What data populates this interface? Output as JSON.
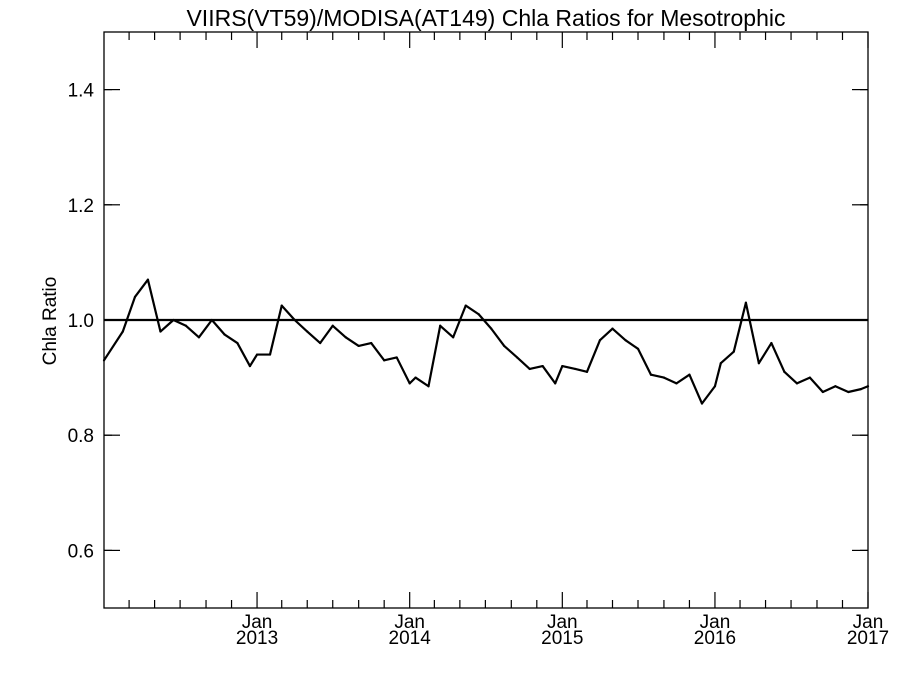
{
  "chart_data": {
    "type": "line",
    "title": "VIIRS(VT59)/MODISA(AT149)  Chla Ratios for Mesotrophic",
    "xlabel": "",
    "ylabel": "Chla Ratio",
    "xlim": [
      "2012-01-01",
      "2017-01-01"
    ],
    "ylim": [
      0.5,
      1.5
    ],
    "y_ticks": [
      {
        "value": 0.6,
        "label": "0.6"
      },
      {
        "value": 0.8,
        "label": "0.8"
      },
      {
        "value": 1.0,
        "label": "1.0"
      },
      {
        "value": 1.2,
        "label": "1.2"
      },
      {
        "value": 1.4,
        "label": "1.4"
      }
    ],
    "x_ticks": [
      {
        "date": "2013-01-01",
        "month": "Jan",
        "year": "2013"
      },
      {
        "date": "2014-01-01",
        "month": "Jan",
        "year": "2014"
      },
      {
        "date": "2015-01-01",
        "month": "Jan",
        "year": "2015"
      },
      {
        "date": "2016-01-01",
        "month": "Jan",
        "year": "2016"
      },
      {
        "date": "2017-01-01",
        "month": "Jan",
        "year": "2017"
      }
    ],
    "reference_line": 1.0,
    "grid": false,
    "series": [
      {
        "x": [
          "2012-01-01",
          "2012-02-15",
          "2012-03-15",
          "2012-04-15",
          "2012-05-15",
          "2012-06-15",
          "2012-07-15",
          "2012-08-15",
          "2012-09-15",
          "2012-10-15",
          "2012-11-15",
          "2012-12-15",
          "2013-01-01",
          "2013-02-01",
          "2013-03-01",
          "2013-04-01",
          "2013-05-01",
          "2013-06-01",
          "2013-07-01",
          "2013-08-01",
          "2013-09-01",
          "2013-10-01",
          "2013-11-01",
          "2013-12-01",
          "2014-01-01",
          "2014-01-15",
          "2014-02-15",
          "2014-03-15",
          "2014-04-15",
          "2014-05-15",
          "2014-06-15",
          "2014-07-15",
          "2014-08-15",
          "2014-09-15",
          "2014-10-15",
          "2014-11-15",
          "2014-12-15",
          "2015-01-01",
          "2015-02-01",
          "2015-03-01",
          "2015-04-01",
          "2015-05-01",
          "2015-06-01",
          "2015-07-01",
          "2015-08-01",
          "2015-09-01",
          "2015-10-01",
          "2015-11-01",
          "2015-12-01",
          "2016-01-01",
          "2016-01-15",
          "2016-02-15",
          "2016-03-15",
          "2016-04-15",
          "2016-05-15",
          "2016-06-15",
          "2016-07-15",
          "2016-08-15",
          "2016-09-15",
          "2016-10-15",
          "2016-11-15",
          "2016-12-15",
          "2017-01-01"
        ],
        "values": [
          0.93,
          0.98,
          1.04,
          1.07,
          0.98,
          1.0,
          0.99,
          0.97,
          1.0,
          0.975,
          0.96,
          0.92,
          0.94,
          0.94,
          1.025,
          1.0,
          0.98,
          0.96,
          0.99,
          0.97,
          0.955,
          0.96,
          0.93,
          0.935,
          0.89,
          0.9,
          0.885,
          0.99,
          0.97,
          1.025,
          1.01,
          0.985,
          0.955,
          0.935,
          0.915,
          0.92,
          0.89,
          0.92,
          0.915,
          0.91,
          0.965,
          0.985,
          0.965,
          0.95,
          0.905,
          0.9,
          0.89,
          0.905,
          0.855,
          0.885,
          0.925,
          0.945,
          1.03,
          0.925,
          0.96,
          0.91,
          0.89,
          0.9,
          0.875,
          0.885,
          0.875,
          0.88,
          0.885
        ]
      }
    ]
  }
}
